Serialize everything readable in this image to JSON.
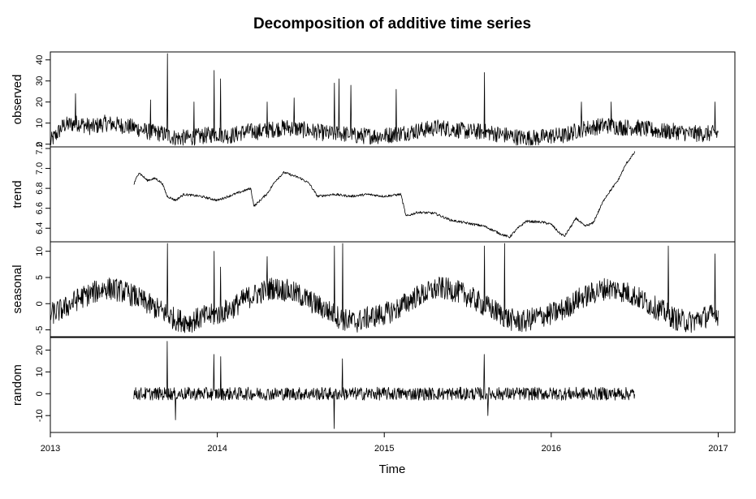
{
  "chart_data": {
    "type": "line",
    "title": "Decomposition of additive time series",
    "xlabel": "Time",
    "xlim": [
      2013.0,
      2017.1
    ],
    "x_ticks": [
      2013,
      2014,
      2015,
      2016,
      2017
    ],
    "x_tick_labels": [
      "2013",
      "2014",
      "2015",
      "2016",
      "2017"
    ],
    "grid": false,
    "panels": [
      {
        "name": "observed",
        "ylim": [
          -0.5,
          43
        ],
        "y_ticks": [
          0,
          10,
          20,
          30,
          40
        ],
        "y_tick_labels": [
          "0",
          "10",
          "20",
          "30",
          "40"
        ],
        "range": [
          2013.0,
          2017.0
        ],
        "points": [
          [
            2013.0,
            1
          ],
          [
            2013.08,
            9
          ],
          [
            2013.17,
            10
          ],
          [
            2013.25,
            8
          ],
          [
            2013.33,
            10
          ],
          [
            2013.42,
            9
          ],
          [
            2013.5,
            8
          ],
          [
            2013.58,
            6
          ],
          [
            2013.67,
            5
          ],
          [
            2013.75,
            3
          ],
          [
            2013.83,
            3
          ],
          [
            2013.92,
            4
          ],
          [
            2014.0,
            5
          ],
          [
            2014.08,
            4
          ],
          [
            2014.17,
            6
          ],
          [
            2014.25,
            6
          ],
          [
            2014.33,
            7
          ],
          [
            2014.42,
            8
          ],
          [
            2014.5,
            7
          ],
          [
            2014.58,
            6
          ],
          [
            2014.67,
            5
          ],
          [
            2014.75,
            5
          ],
          [
            2014.83,
            4
          ],
          [
            2014.92,
            4
          ],
          [
            2015.0,
            4
          ],
          [
            2015.08,
            5
          ],
          [
            2015.17,
            6
          ],
          [
            2015.25,
            7
          ],
          [
            2015.33,
            8
          ],
          [
            2015.42,
            7
          ],
          [
            2015.5,
            6
          ],
          [
            2015.58,
            6
          ],
          [
            2015.67,
            5
          ],
          [
            2015.75,
            4
          ],
          [
            2015.83,
            3
          ],
          [
            2015.92,
            3
          ],
          [
            2016.0,
            4
          ],
          [
            2016.08,
            4
          ],
          [
            2016.17,
            7
          ],
          [
            2016.25,
            8
          ],
          [
            2016.33,
            9
          ],
          [
            2016.42,
            8
          ],
          [
            2016.5,
            8
          ],
          [
            2016.58,
            7
          ],
          [
            2016.67,
            6
          ],
          [
            2016.75,
            6
          ],
          [
            2016.83,
            5
          ],
          [
            2016.92,
            5
          ],
          [
            2017.0,
            5
          ]
        ],
        "amplitude": 4,
        "spikes": [
          [
            2013.15,
            24
          ],
          [
            2013.6,
            21
          ],
          [
            2013.7,
            43
          ],
          [
            2013.86,
            20
          ],
          [
            2013.98,
            35
          ],
          [
            2014.02,
            31
          ],
          [
            2014.3,
            20
          ],
          [
            2014.46,
            22
          ],
          [
            2014.7,
            29
          ],
          [
            2014.73,
            31
          ],
          [
            2014.8,
            28
          ],
          [
            2015.07,
            26
          ],
          [
            2015.6,
            34
          ],
          [
            2016.18,
            20
          ],
          [
            2016.36,
            20
          ],
          [
            2016.98,
            20
          ]
        ]
      },
      {
        "name": "trend",
        "ylim": [
          6.28,
          7.2
        ],
        "y_ticks": [
          6.4,
          6.6,
          6.8,
          7.0,
          7.2
        ],
        "y_tick_labels": [
          "6.4",
          "6.6",
          "6.8",
          "7.0",
          "7.2"
        ],
        "range": [
          2013.5,
          2016.5
        ],
        "points": [
          [
            2013.5,
            6.84
          ],
          [
            2013.53,
            6.96
          ],
          [
            2013.58,
            6.88
          ],
          [
            2013.63,
            6.9
          ],
          [
            2013.67,
            6.85
          ],
          [
            2013.7,
            6.72
          ],
          [
            2013.75,
            6.68
          ],
          [
            2013.8,
            6.74
          ],
          [
            2013.9,
            6.72
          ],
          [
            2014.0,
            6.68
          ],
          [
            2014.1,
            6.74
          ],
          [
            2014.2,
            6.8
          ],
          [
            2014.22,
            6.62
          ],
          [
            2014.3,
            6.75
          ],
          [
            2014.35,
            6.88
          ],
          [
            2014.4,
            6.96
          ],
          [
            2014.5,
            6.9
          ],
          [
            2014.55,
            6.85
          ],
          [
            2014.6,
            6.72
          ],
          [
            2014.7,
            6.74
          ],
          [
            2014.8,
            6.72
          ],
          [
            2014.9,
            6.74
          ],
          [
            2015.0,
            6.72
          ],
          [
            2015.1,
            6.74
          ],
          [
            2015.13,
            6.52
          ],
          [
            2015.2,
            6.56
          ],
          [
            2015.3,
            6.55
          ],
          [
            2015.4,
            6.48
          ],
          [
            2015.5,
            6.45
          ],
          [
            2015.6,
            6.42
          ],
          [
            2015.7,
            6.34
          ],
          [
            2015.75,
            6.31
          ],
          [
            2015.8,
            6.4
          ],
          [
            2015.85,
            6.47
          ],
          [
            2015.95,
            6.46
          ],
          [
            2016.0,
            6.44
          ],
          [
            2016.05,
            6.35
          ],
          [
            2016.08,
            6.32
          ],
          [
            2016.15,
            6.5
          ],
          [
            2016.2,
            6.42
          ],
          [
            2016.25,
            6.45
          ],
          [
            2016.32,
            6.7
          ],
          [
            2016.4,
            6.88
          ],
          [
            2016.45,
            7.05
          ],
          [
            2016.5,
            7.16
          ]
        ],
        "amplitude": 0.012,
        "spikes": []
      },
      {
        "name": "seasonal",
        "ylim": [
          -6,
          11.5
        ],
        "y_ticks": [
          -5,
          0,
          5,
          10
        ],
        "y_tick_labels": [
          "-5",
          "0",
          "5",
          "10"
        ],
        "range": [
          2013.0,
          2017.0
        ],
        "points": [
          [
            2013.0,
            -2
          ],
          [
            2013.08,
            -1
          ],
          [
            2013.17,
            1
          ],
          [
            2013.25,
            2
          ],
          [
            2013.33,
            3
          ],
          [
            2013.42,
            2.5
          ],
          [
            2013.5,
            1.5
          ],
          [
            2013.58,
            0
          ],
          [
            2013.67,
            -1.5
          ],
          [
            2013.75,
            -3
          ],
          [
            2013.83,
            -3.5
          ],
          [
            2013.92,
            -2.5
          ],
          [
            2014.0,
            -2
          ],
          [
            2014.08,
            -1
          ],
          [
            2014.17,
            1
          ],
          [
            2014.25,
            2
          ],
          [
            2014.33,
            3
          ],
          [
            2014.42,
            2.5
          ],
          [
            2014.5,
            1.5
          ],
          [
            2014.58,
            0
          ],
          [
            2014.67,
            -1.5
          ],
          [
            2014.75,
            -3
          ],
          [
            2014.83,
            -3.5
          ],
          [
            2014.92,
            -2.5
          ],
          [
            2015.0,
            -2
          ],
          [
            2015.08,
            -1
          ],
          [
            2015.17,
            1
          ],
          [
            2015.25,
            2
          ],
          [
            2015.33,
            3
          ],
          [
            2015.42,
            2.5
          ],
          [
            2015.5,
            1.5
          ],
          [
            2015.58,
            0
          ],
          [
            2015.67,
            -1.5
          ],
          [
            2015.75,
            -3
          ],
          [
            2015.83,
            -3.5
          ],
          [
            2015.92,
            -2.5
          ],
          [
            2016.0,
            -2
          ],
          [
            2016.08,
            -1
          ],
          [
            2016.17,
            1
          ],
          [
            2016.25,
            2
          ],
          [
            2016.33,
            3
          ],
          [
            2016.42,
            2.5
          ],
          [
            2016.5,
            1.5
          ],
          [
            2016.58,
            0
          ],
          [
            2016.67,
            -1.5
          ],
          [
            2016.75,
            -3
          ],
          [
            2016.83,
            -3.5
          ],
          [
            2016.92,
            -2.5
          ],
          [
            2017.0,
            -2
          ]
        ],
        "amplitude": 2.2,
        "spikes": [
          [
            2013.7,
            11.5
          ],
          [
            2013.98,
            10
          ],
          [
            2014.02,
            7
          ],
          [
            2014.3,
            9
          ],
          [
            2014.7,
            11
          ],
          [
            2014.75,
            11.5
          ],
          [
            2015.6,
            11
          ],
          [
            2015.72,
            11.5
          ],
          [
            2016.7,
            11
          ],
          [
            2016.98,
            9.5
          ]
        ]
      },
      {
        "name": "random",
        "ylim": [
          -17,
          25
        ],
        "y_ticks": [
          -10,
          0,
          10,
          20
        ],
        "y_tick_labels": [
          "-10",
          "0",
          "10",
          "20"
        ],
        "range": [
          2013.5,
          2016.5
        ],
        "points": [
          [
            2013.5,
            0
          ],
          [
            2014.0,
            0
          ],
          [
            2014.5,
            0
          ],
          [
            2015.0,
            0
          ],
          [
            2015.5,
            0
          ],
          [
            2016.0,
            0
          ],
          [
            2016.5,
            0
          ]
        ],
        "amplitude": 3,
        "spikes": [
          [
            2013.7,
            24
          ],
          [
            2013.98,
            18
          ],
          [
            2014.02,
            17
          ],
          [
            2014.7,
            -16
          ],
          [
            2014.75,
            16
          ],
          [
            2015.6,
            18
          ],
          [
            2015.62,
            -10
          ],
          [
            2013.75,
            -12
          ]
        ]
      }
    ]
  }
}
